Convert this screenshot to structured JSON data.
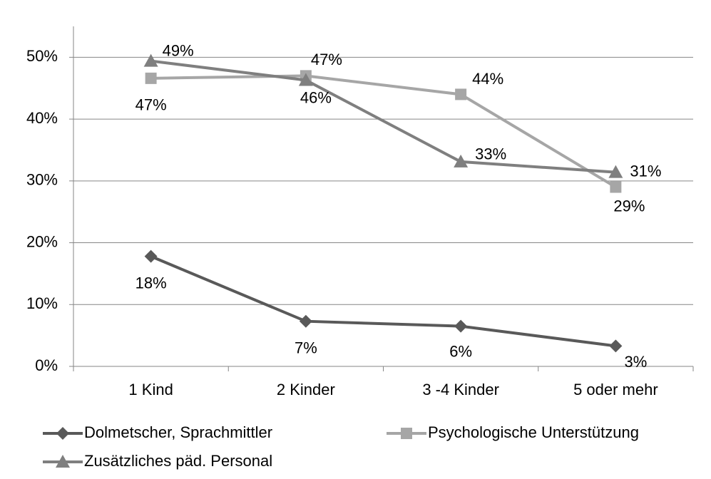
{
  "chart_data": {
    "type": "line",
    "categories": [
      "1 Kind",
      "2 Kinder",
      "3 -4 Kinder",
      "5 oder mehr"
    ],
    "series": [
      {
        "name": "Dolmetscher, Sprachmittler",
        "color": "#595959",
        "marker": "diamond",
        "values": [
          17.8,
          7.3,
          6.5,
          3.3
        ],
        "value_labels": [
          "18%",
          "7%",
          "6%",
          "3%"
        ]
      },
      {
        "name": "Psychologische Unterstützung",
        "color": "#a6a6a6",
        "marker": "square",
        "values": [
          46.6,
          47,
          44,
          29
        ],
        "value_labels": [
          "47%",
          "47%",
          "44%",
          "29%"
        ]
      },
      {
        "name": "Zusätzliches päd. Personal",
        "color": "#7f7f7f",
        "marker": "triangle",
        "values": [
          49.4,
          46.3,
          33.1,
          31.4
        ],
        "value_labels": [
          "49%",
          "46%",
          "33%",
          "31%"
        ]
      }
    ],
    "ylim": [
      0,
      55
    ],
    "yticks": [
      {
        "value": 0,
        "label": "0%"
      },
      {
        "value": 10,
        "label": "10%"
      },
      {
        "value": 20,
        "label": "20%"
      },
      {
        "value": 30,
        "label": "30%"
      },
      {
        "value": 40,
        "label": "40%"
      },
      {
        "value": 50,
        "label": "50%"
      }
    ],
    "grid": true,
    "legend": "bottom"
  }
}
